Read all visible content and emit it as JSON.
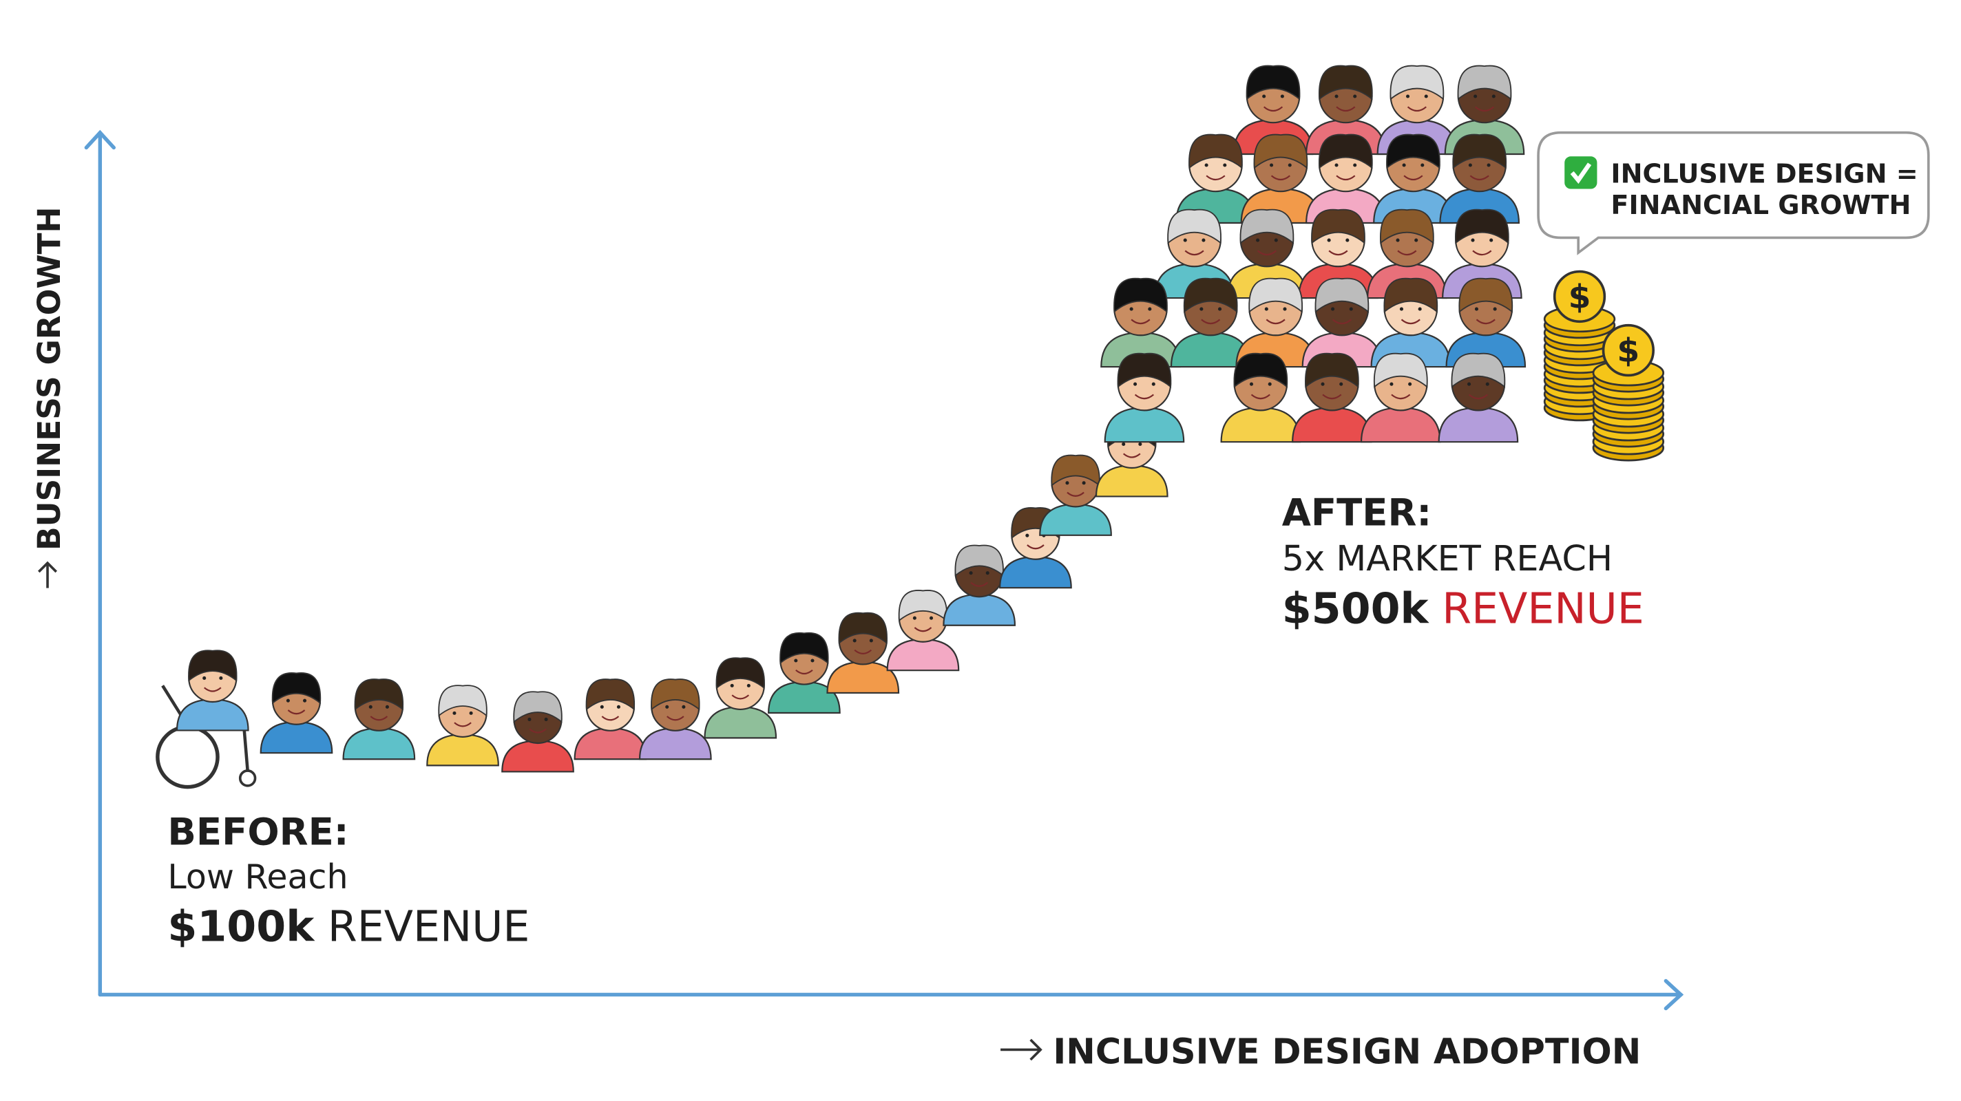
{
  "axes": {
    "y_label": "BUSINESS GROWTH",
    "x_label": "INCLUSIVE DESIGN ADOPTION"
  },
  "before": {
    "heading": "BEFORE:",
    "reach": "Low Reach",
    "revenue_amount": "$100k",
    "revenue_word": "REVENUE"
  },
  "after": {
    "heading": "AFTER:",
    "reach": "5x MARKET REACH",
    "revenue_amount": "$500k",
    "revenue_word": "REVENUE"
  },
  "callout": {
    "lines": [
      "INCLUSIVE DESIGN =",
      "FINANCIAL GROWTH"
    ]
  },
  "coins": {
    "symbol": "$"
  }
}
